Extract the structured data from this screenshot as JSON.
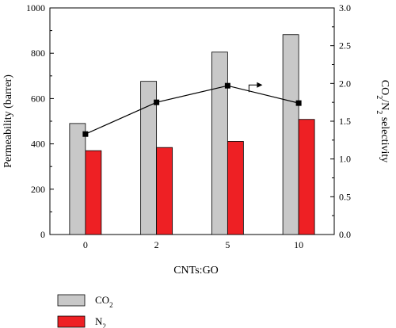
{
  "chart_data": {
    "type": "bar",
    "categories": [
      "0",
      "2",
      "5",
      "10"
    ],
    "series": [
      {
        "name": "CO2",
        "display_name": "CO",
        "subscript": "2",
        "axis": "left",
        "color": "#c8c8c8",
        "values": [
          490,
          676,
          805,
          882
        ]
      },
      {
        "name": "N2",
        "display_name": "N",
        "subscript": "2",
        "axis": "left",
        "color": "#ee2024",
        "values": [
          370,
          384,
          411,
          508
        ]
      },
      {
        "name": "CO2/N2 selectivity",
        "type": "line",
        "axis": "right",
        "color": "#000000",
        "values": [
          1.33,
          1.75,
          1.97,
          1.74
        ]
      }
    ],
    "xlabel": "CNTs:GO",
    "ylabel": "Permeability (barrer)",
    "y2label": {
      "parts": [
        "CO",
        "2",
        "/N",
        "2",
        " selectivity"
      ]
    },
    "ylim": [
      0,
      1000
    ],
    "y2lim": [
      0,
      3.0
    ],
    "yticks": [
      "0",
      "200",
      "400",
      "600",
      "800",
      "1000"
    ],
    "y2ticks": [
      "0.0",
      "0.5",
      "1.0",
      "1.5",
      "2.0",
      "2.5",
      "3.0"
    ],
    "grid": false,
    "legend_position": "bottom-left",
    "annotation": "arrow pointing right toward selectivity axis"
  }
}
